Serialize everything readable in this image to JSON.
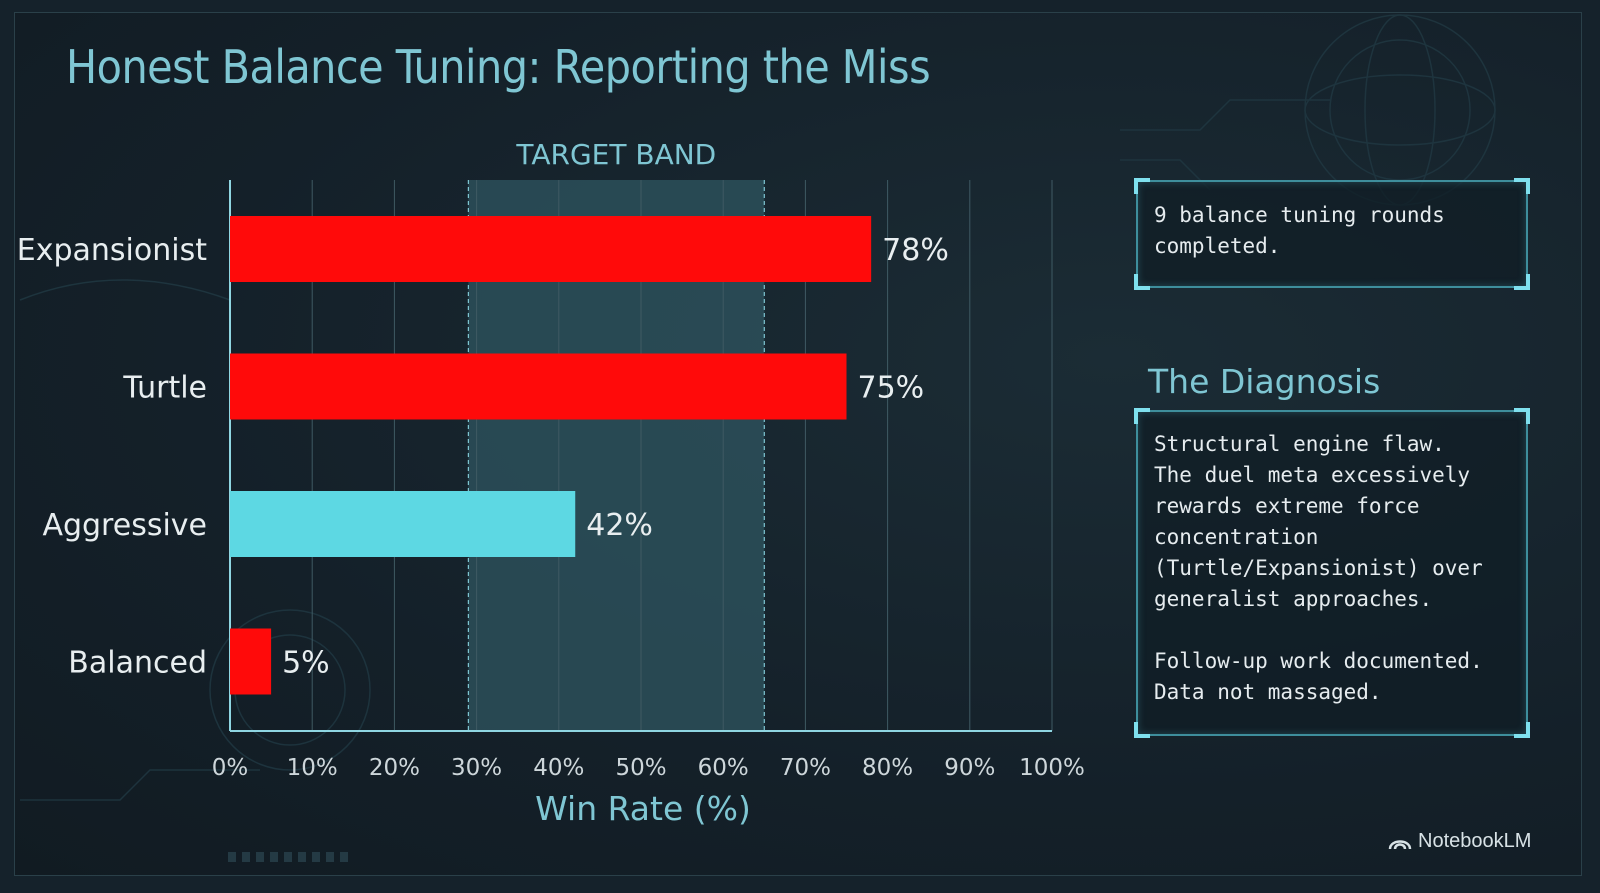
{
  "title": "Honest Balance Tuning: Reporting the Miss",
  "chart_data": {
    "type": "bar",
    "orientation": "horizontal",
    "categories": [
      "Expansionist",
      "Turtle",
      "Aggressive",
      "Balanced"
    ],
    "values": [
      78,
      75,
      42,
      5
    ],
    "value_labels": [
      "78%",
      "75%",
      "42%",
      "5%"
    ],
    "bar_colors": [
      "#ff0a0a",
      "#ff0a0a",
      "#5dd8e3",
      "#ff0a0a"
    ],
    "xlabel": "Win Rate (%)",
    "xlim": [
      0,
      100
    ],
    "xticks": [
      0,
      10,
      20,
      30,
      40,
      50,
      60,
      70,
      80,
      90,
      100
    ],
    "xtick_labels": [
      "0%",
      "10%",
      "20%",
      "30%",
      "40%",
      "50%",
      "60%",
      "70%",
      "80%",
      "90%",
      "100%"
    ],
    "grid": true,
    "target_band": {
      "label": "TARGET BAND",
      "from": 29,
      "to": 65
    }
  },
  "panels": {
    "summary": "9 balance tuning rounds\ncompleted.",
    "diagnosis_title": "The Diagnosis",
    "diagnosis": "Structural engine flaw.\nThe duel meta excessively\nrewards extreme force\nconcentration\n(Turtle/Expansionist) over\ngeneralist approaches.\n\nFollow-up work documented.\nData not massaged."
  },
  "brand": "NotebookLM",
  "colors": {
    "accent": "#7fc6d3",
    "over_target": "#ff0a0a",
    "in_target": "#5dd8e3"
  }
}
